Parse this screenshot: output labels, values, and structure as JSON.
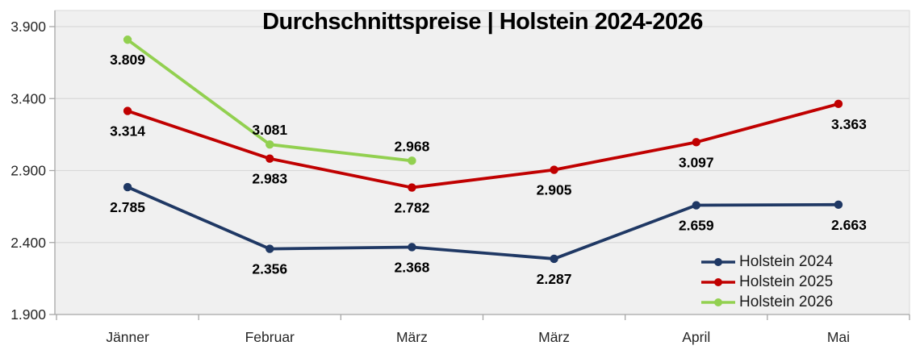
{
  "chart_data": {
    "type": "line",
    "title": "Durchschnittspreise | Holstein 2024-2026",
    "categories": [
      "Jänner",
      "Februar",
      "März",
      "März",
      "April",
      "Mai"
    ],
    "series": [
      {
        "name": "Holstein 2024",
        "color": "#1F3864",
        "values": [
          2.785,
          2.356,
          2.368,
          2.287,
          2.659,
          2.663
        ],
        "labels": [
          "2.785",
          "2.356",
          "2.368",
          "2.287",
          "2.659",
          "2.663"
        ],
        "label_sides": [
          "below",
          "below",
          "below",
          "below",
          "below",
          "below"
        ]
      },
      {
        "name": "Holstein 2025",
        "color": "#C00000",
        "values": [
          3.314,
          2.983,
          2.782,
          2.905,
          3.097,
          3.363
        ],
        "labels": [
          "3.314",
          "2.983",
          "2.782",
          "2.905",
          "3.097",
          "3.363"
        ],
        "label_sides": [
          "below",
          "below",
          "below",
          "below",
          "below",
          "below"
        ]
      },
      {
        "name": "Holstein 2026",
        "color": "#92D050",
        "values": [
          3.809,
          3.081,
          2.968
        ],
        "labels": [
          "3.809",
          "3.081",
          "2.968"
        ],
        "label_sides": [
          "below",
          "above",
          "above"
        ]
      }
    ],
    "y_axis": {
      "min": 1.9,
      "max": 3.9,
      "ticks": [
        {
          "label": "3.900",
          "value": 3.9
        },
        {
          "label": "3.400",
          "value": 3.4
        },
        {
          "label": "2.900",
          "value": 2.9
        },
        {
          "label": "2.400",
          "value": 2.4
        },
        {
          "label": "1.900",
          "value": 1.9
        }
      ],
      "gridlines": true
    },
    "legend": {
      "position": "inside-bottom-right",
      "entries": [
        "Holstein 2024",
        "Holstein 2025",
        "Holstein 2026"
      ]
    },
    "colors": {
      "plot_bg": "#F0F0F0",
      "gridline": "#D9D9D9",
      "axis_line": "#A6A6A6",
      "tick_label": "#262626",
      "data_label": "#000000",
      "title": "#000000"
    }
  }
}
